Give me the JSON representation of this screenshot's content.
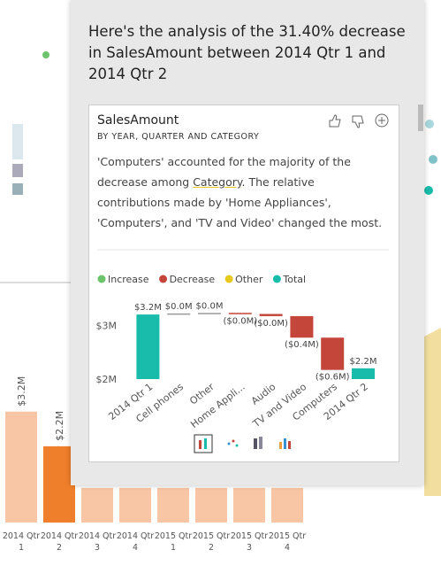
{
  "popup": {
    "title": "Here's the analysis of the 31.40% decrease in SalesAmount between 2014 Qtr 1 and 2014 Qtr 2",
    "card": {
      "title": "SalesAmount",
      "subtitle": "BY YEAR, QUARTER AND CATEGORY",
      "description_before": "'Computers' accounted for the majority of the decrease among ",
      "description_link": "Category",
      "description_after": ". The relative contributions made by 'Home Appliances', 'Computers', and 'TV and Video' changed the most."
    }
  },
  "chart_data": [
    {
      "type": "waterfall",
      "legend": [
        {
          "name": "Increase",
          "color": "#6cc36a"
        },
        {
          "name": "Decrease",
          "color": "#c4453a"
        },
        {
          "name": "Other",
          "color": "#e8c81c"
        },
        {
          "name": "Total",
          "color": "#19bcaa"
        }
      ],
      "categories": [
        "2014 Qtr 1",
        "Cell phones",
        "Other",
        "Home Appli...",
        "Audio",
        "TV and Video",
        "Computers",
        "2014 Qtr 2"
      ],
      "values": [
        3.2,
        0.02,
        0.01,
        -0.02,
        -0.04,
        -0.4,
        -0.6,
        2.2
      ],
      "value_labels": [
        "$3.2M",
        "$0.0M",
        "$0.0M",
        "($0.0M)",
        "($0.0M)",
        "($0.4M)",
        "($0.6M)",
        "$2.2M"
      ],
      "colors": [
        "#19bcaa",
        "#9a9a9a",
        "#9a9a9a",
        "#c4453a",
        "#c4453a",
        "#c4453a",
        "#c4453a",
        "#19bcaa"
      ],
      "totals": [
        true,
        false,
        false,
        false,
        false,
        false,
        false,
        true
      ],
      "ylim": [
        2,
        3.35
      ],
      "yticks": [
        {
          "value": 2,
          "label": "$2M"
        },
        {
          "value": 3,
          "label": "$3M"
        }
      ]
    },
    {
      "type": "bar",
      "categories": [
        "2014 Qtr 1",
        "2014 Qtr 2",
        "2014 Qtr 3",
        "2014 Qtr 4",
        "2015 Qtr 1",
        "2015 Qtr 2",
        "2015 Qtr 3",
        "2015 Qtr 4"
      ],
      "values": [
        3.2,
        2.2,
        1.0,
        1.0,
        1.0,
        1.0,
        1.0,
        1.0
      ],
      "value_labels": [
        "$3.2M",
        "$2.2M",
        null,
        null,
        null,
        null,
        null,
        null
      ],
      "colors": [
        "#f9c6a5",
        "#f07f2b",
        "#f9c6a5",
        "#f9c6a5",
        "#f9c6a5",
        "#f9c6a5",
        "#f9c6a5",
        "#f9c6a5"
      ],
      "ylim": [
        0,
        3.5
      ]
    }
  ]
}
